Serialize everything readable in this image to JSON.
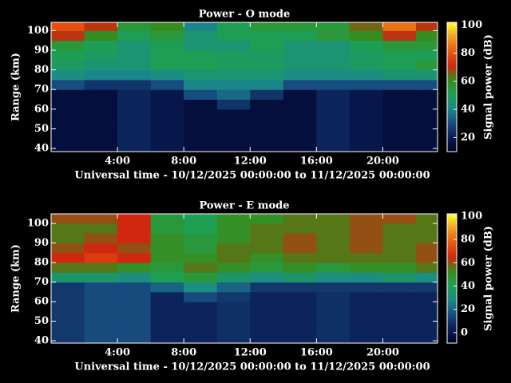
{
  "chart_data": [
    {
      "type": "heatmap",
      "title": "Power - O mode",
      "xlabel": "Universal time - 10/12/2025 00:00:00 to 11/12/2025 00:00:00",
      "ylabel": "Range (km)",
      "x_edges": [
        0,
        2,
        4,
        6,
        8,
        10,
        12,
        14,
        16,
        18,
        20,
        22,
        24
      ],
      "y_edges": [
        35,
        40,
        45,
        50,
        55,
        60,
        65,
        70,
        75,
        80,
        85,
        90,
        95,
        100,
        105
      ],
      "z": [
        [
          15,
          15,
          22,
          18,
          15,
          15,
          15,
          15,
          22,
          18,
          15,
          15
        ],
        [
          15,
          15,
          22,
          18,
          15,
          15,
          15,
          15,
          22,
          18,
          15,
          15
        ],
        [
          15,
          15,
          22,
          18,
          15,
          15,
          15,
          15,
          22,
          18,
          15,
          15
        ],
        [
          15,
          15,
          22,
          18,
          15,
          15,
          15,
          15,
          22,
          18,
          15,
          15
        ],
        [
          15,
          15,
          22,
          18,
          15,
          15,
          15,
          15,
          22,
          18,
          15,
          15
        ],
        [
          15,
          15,
          22,
          18,
          15,
          25,
          15,
          15,
          22,
          18,
          15,
          15
        ],
        [
          15,
          15,
          22,
          18,
          30,
          35,
          25,
          15,
          22,
          18,
          15,
          15
        ],
        [
          30,
          25,
          25,
          30,
          40,
          40,
          40,
          30,
          30,
          30,
          30,
          30
        ],
        [
          42,
          40,
          40,
          42,
          45,
          45,
          45,
          42,
          42,
          42,
          45,
          45
        ],
        [
          48,
          45,
          45,
          50,
          50,
          48,
          48,
          45,
          45,
          48,
          50,
          55
        ],
        [
          50,
          48,
          45,
          50,
          50,
          48,
          48,
          45,
          45,
          48,
          50,
          50
        ],
        [
          55,
          50,
          45,
          50,
          45,
          45,
          50,
          45,
          45,
          50,
          55,
          55
        ],
        [
          70,
          60,
          50,
          55,
          45,
          50,
          50,
          50,
          55,
          60,
          70,
          60
        ],
        [
          80,
          70,
          55,
          60,
          40,
          50,
          55,
          55,
          55,
          65,
          85,
          70
        ]
      ],
      "xlim": [
        0,
        23.3
      ],
      "ylim": [
        38.4,
        104.2
      ],
      "xticks": [
        {
          "value": 4,
          "label": "4:00"
        },
        {
          "value": 8,
          "label": "8:00"
        },
        {
          "value": 12,
          "label": "12:00"
        },
        {
          "value": 16,
          "label": "16:00"
        },
        {
          "value": 20,
          "label": "20:00"
        }
      ],
      "yticks": [
        40,
        50,
        60,
        70,
        80,
        90,
        100
      ],
      "colorbar": {
        "label": "Signal power (dB)",
        "lim": [
          10,
          102
        ],
        "ticks": [
          20,
          40,
          60,
          80,
          100
        ]
      }
    },
    {
      "type": "heatmap",
      "title": "Power - E mode",
      "xlabel": "Universal time - 10/12/2025 00:00:00 to 11/12/2025 00:00:00",
      "ylabel": "Range (km)",
      "x_edges": [
        0,
        2,
        4,
        6,
        8,
        10,
        12,
        14,
        16,
        18,
        20,
        22,
        24
      ],
      "y_edges": [
        35,
        40,
        45,
        50,
        55,
        60,
        65,
        70,
        75,
        80,
        85,
        90,
        95,
        100,
        105
      ],
      "z": [
        [
          10,
          15,
          15,
          5,
          5,
          8,
          5,
          5,
          8,
          5,
          5,
          5
        ],
        [
          10,
          15,
          15,
          5,
          5,
          8,
          5,
          5,
          8,
          5,
          5,
          5
        ],
        [
          10,
          15,
          15,
          5,
          5,
          8,
          5,
          5,
          8,
          5,
          5,
          5
        ],
        [
          10,
          15,
          15,
          5,
          5,
          8,
          5,
          5,
          8,
          5,
          5,
          5
        ],
        [
          10,
          15,
          15,
          5,
          5,
          8,
          5,
          5,
          8,
          5,
          5,
          5
        ],
        [
          10,
          15,
          15,
          5,
          15,
          10,
          5,
          5,
          8,
          5,
          5,
          5
        ],
        [
          10,
          15,
          15,
          20,
          30,
          20,
          10,
          10,
          10,
          10,
          10,
          10
        ],
        [
          35,
          35,
          30,
          40,
          45,
          35,
          30,
          35,
          30,
          30,
          35,
          30
        ],
        [
          55,
          55,
          50,
          45,
          55,
          50,
          45,
          50,
          45,
          50,
          50,
          55
        ],
        [
          65,
          70,
          65,
          50,
          50,
          55,
          50,
          55,
          55,
          55,
          55,
          60
        ],
        [
          60,
          65,
          60,
          50,
          45,
          55,
          55,
          60,
          55,
          60,
          55,
          60
        ],
        [
          55,
          60,
          65,
          50,
          45,
          50,
          55,
          60,
          55,
          60,
          55,
          55
        ],
        [
          55,
          55,
          65,
          45,
          40,
          50,
          55,
          55,
          55,
          60,
          55,
          55
        ],
        [
          60,
          60,
          65,
          45,
          40,
          50,
          50,
          55,
          55,
          60,
          60,
          55
        ]
      ],
      "xlim": [
        0,
        23.3
      ],
      "ylim": [
        38.8,
        104.9
      ],
      "xticks": [
        {
          "value": 4,
          "label": "4:00"
        },
        {
          "value": 8,
          "label": "8:00"
        },
        {
          "value": 12,
          "label": "12:00"
        },
        {
          "value": 16,
          "label": "16:00"
        },
        {
          "value": 20,
          "label": "20:00"
        }
      ],
      "yticks": [
        40,
        50,
        60,
        70,
        80,
        90,
        100
      ],
      "colorbar": {
        "label": "Signal power (dB)",
        "lim": [
          -9,
          102
        ],
        "ticks": [
          0,
          20,
          40,
          60,
          80,
          100
        ]
      }
    }
  ],
  "colormap": [
    "#000028",
    "#0a1e55",
    "#184e80",
    "#1a8a8a",
    "#1ea050",
    "#3a8a1a",
    "#d02810",
    "#e85a10",
    "#f0a020",
    "#ffff30"
  ]
}
